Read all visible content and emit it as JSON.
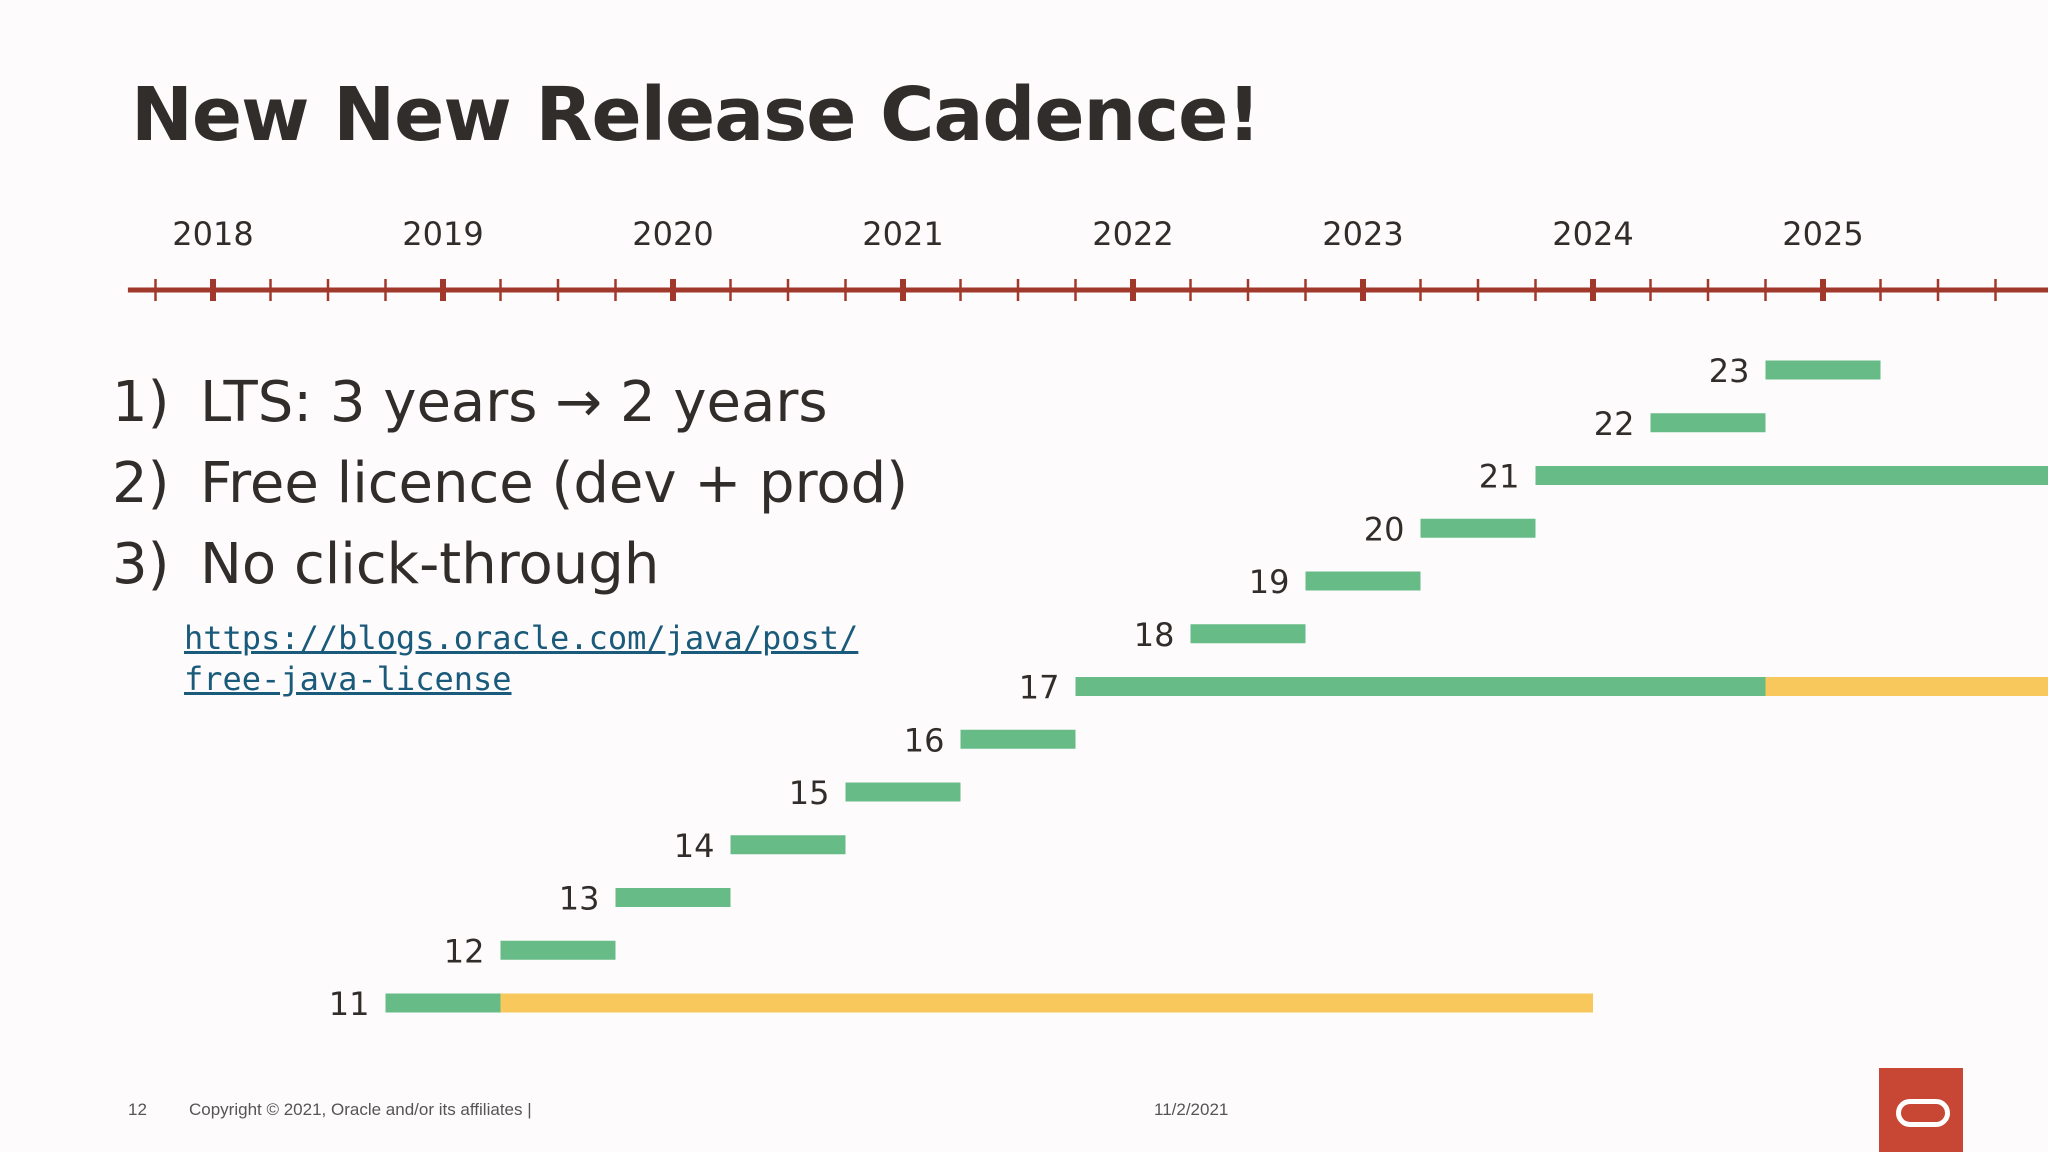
{
  "title": "New New Release Cadence!",
  "points": [
    {
      "num": "1)",
      "text": "LTS: 3 years → 2 years"
    },
    {
      "num": "2)",
      "text": "Free licence (dev + prod)"
    },
    {
      "num": "3)",
      "text": "No click-through"
    }
  ],
  "link": {
    "line1": "https://blogs.oracle.com/java/post/",
    "line2": "free-java-license"
  },
  "footer": {
    "page": "12",
    "copyright": "Copyright © 2021, Oracle and/or its affiliates  |",
    "date": "11/2/2021"
  },
  "colors": {
    "axis": "#a0392b",
    "support": "#66bb87",
    "extended": "#f9c85c",
    "logo": "#c74634"
  },
  "chart_data": {
    "type": "timeline",
    "title": "",
    "x_ticks": [
      2018,
      2019,
      2020,
      2021,
      2022,
      2023,
      2024,
      2025
    ],
    "x_range": [
      2017.63,
      2026.4
    ],
    "releases": [
      {
        "label": "11",
        "start": 2018.75,
        "support_end": 2019.25,
        "extended_end": 2024.0
      },
      {
        "label": "12",
        "start": 2019.25,
        "support_end": 2019.75
      },
      {
        "label": "13",
        "start": 2019.75,
        "support_end": 2020.25
      },
      {
        "label": "14",
        "start": 2020.25,
        "support_end": 2020.75
      },
      {
        "label": "15",
        "start": 2020.75,
        "support_end": 2021.25
      },
      {
        "label": "16",
        "start": 2021.25,
        "support_end": 2021.75
      },
      {
        "label": "17",
        "start": 2021.75,
        "support_end": 2024.75,
        "extended_end": 2026.4
      },
      {
        "label": "18",
        "start": 2022.25,
        "support_end": 2022.75
      },
      {
        "label": "19",
        "start": 2022.75,
        "support_end": 2023.25
      },
      {
        "label": "20",
        "start": 2023.25,
        "support_end": 2023.75
      },
      {
        "label": "21",
        "start": 2023.75,
        "support_end": 2026.4
      },
      {
        "label": "22",
        "start": 2024.25,
        "support_end": 2024.75
      },
      {
        "label": "23",
        "start": 2024.75,
        "support_end": 2025.25
      }
    ]
  }
}
